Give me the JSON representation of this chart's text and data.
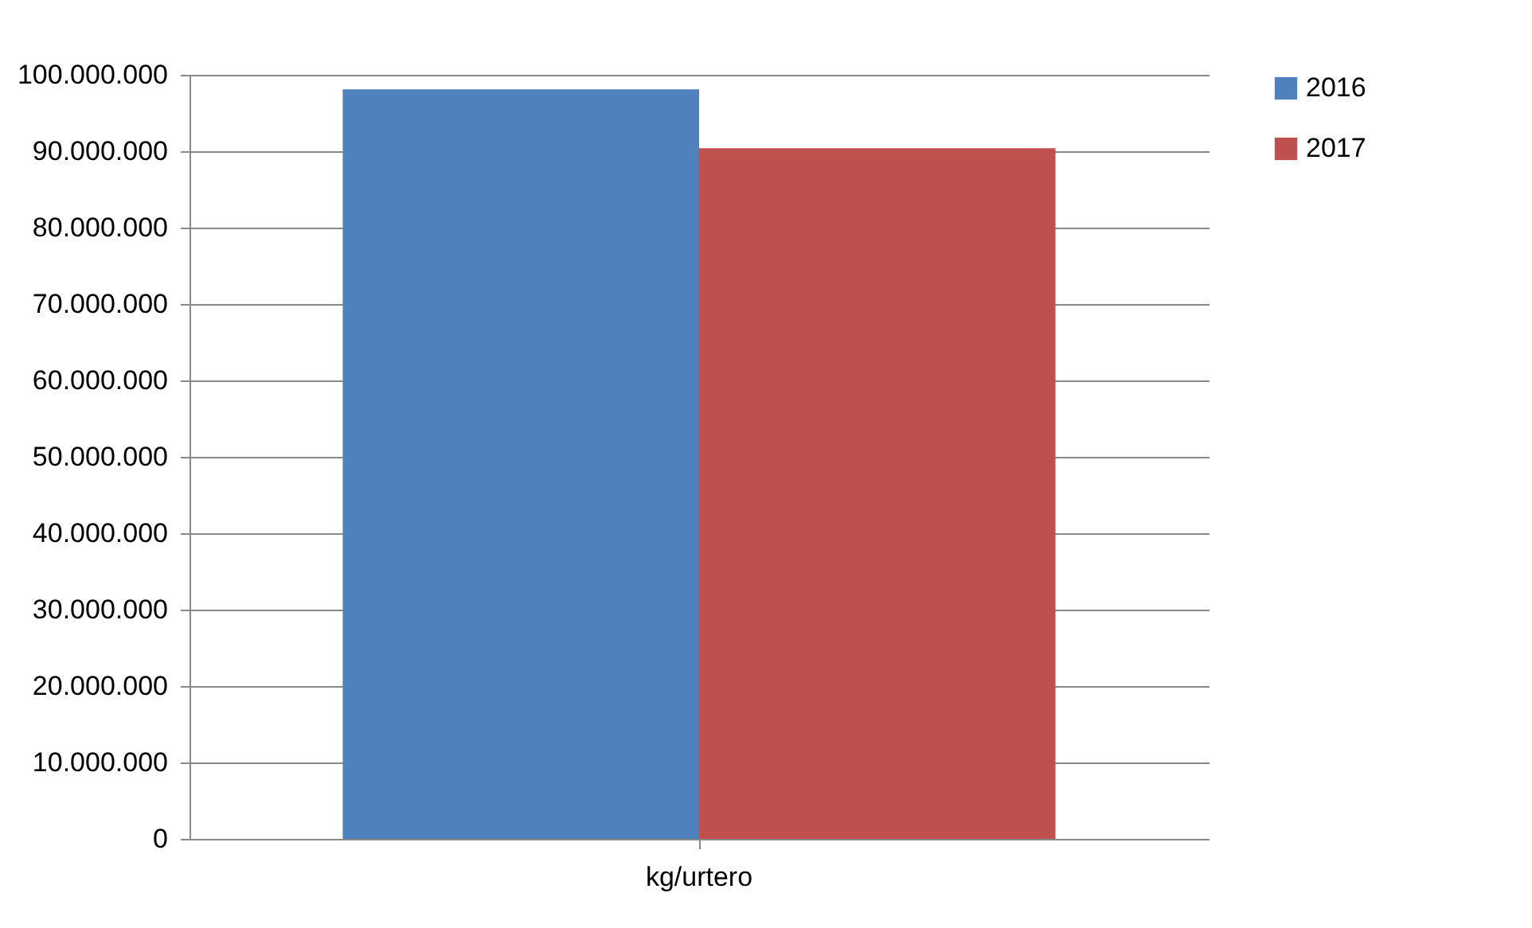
{
  "chart_data": {
    "type": "bar",
    "categories": [
      "kg/urtero"
    ],
    "series": [
      {
        "name": "2016",
        "color": "#4f81bd",
        "values": [
          98100000
        ]
      },
      {
        "name": "2017",
        "color": "#c0504d",
        "values": [
          90400000
        ]
      }
    ],
    "ylim": [
      0,
      100000000
    ],
    "yticks": [
      {
        "value": 0,
        "label": "0"
      },
      {
        "value": 10000000,
        "label": "10.000.000"
      },
      {
        "value": 20000000,
        "label": "20.000.000"
      },
      {
        "value": 30000000,
        "label": "30.000.000"
      },
      {
        "value": 40000000,
        "label": "40.000.000"
      },
      {
        "value": 50000000,
        "label": "50.000.000"
      },
      {
        "value": 60000000,
        "label": "60.000.000"
      },
      {
        "value": 70000000,
        "label": "70.000.000"
      },
      {
        "value": 80000000,
        "label": "80.000.000"
      },
      {
        "value": 90000000,
        "label": "90.000.000"
      },
      {
        "value": 100000000,
        "label": "100.000.000"
      }
    ],
    "grid": "y",
    "legend": "right"
  }
}
